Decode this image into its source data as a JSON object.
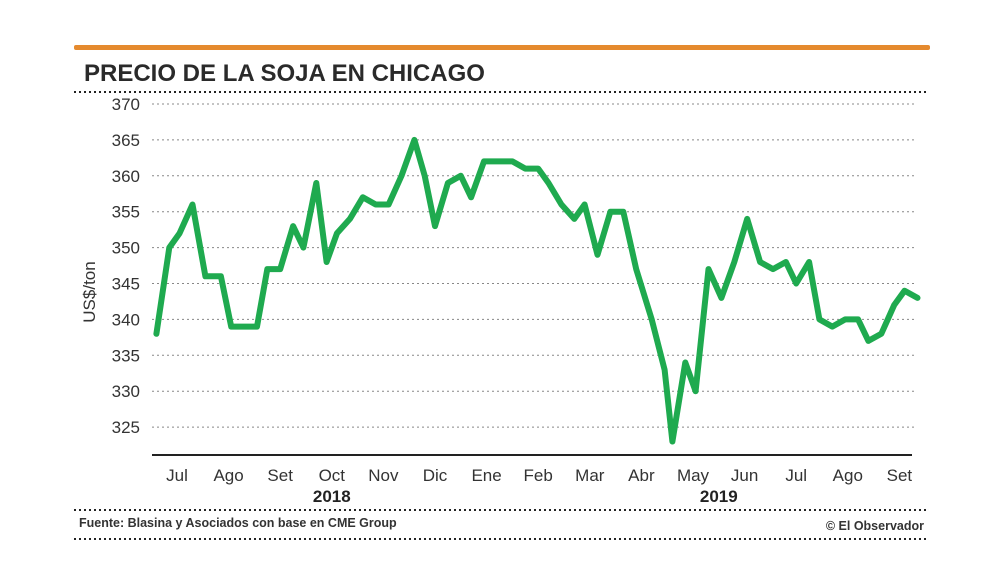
{
  "chart_data": {
    "type": "line",
    "title": "PRECIO DE LA SOJA EN CHICAGO",
    "ylabel": "US$/ton",
    "xlabel": "",
    "ylim": [
      320,
      370
    ],
    "yticks": [
      325,
      330,
      335,
      340,
      345,
      350,
      355,
      360,
      365,
      370
    ],
    "grid": true,
    "months": [
      "Jul",
      "Ago",
      "Set",
      "Oct",
      "Nov",
      "Dic",
      "Ene",
      "Feb",
      "Mar",
      "Abr",
      "May",
      "Jun",
      "Jul",
      "Ago",
      "Set"
    ],
    "years": [
      {
        "label": "2018",
        "under_month_index": 3
      },
      {
        "label": "2019",
        "under_month_index": 10.5
      }
    ],
    "series": [
      {
        "name": "Precio de la soja",
        "color": "#1faa4f",
        "points": [
          [
            -0.4,
            338
          ],
          [
            -0.15,
            350
          ],
          [
            0.05,
            352
          ],
          [
            0.3,
            356
          ],
          [
            0.55,
            346
          ],
          [
            0.85,
            346
          ],
          [
            1.05,
            339
          ],
          [
            1.35,
            339
          ],
          [
            1.55,
            339
          ],
          [
            1.75,
            347
          ],
          [
            2.0,
            347
          ],
          [
            2.25,
            353
          ],
          [
            2.45,
            350
          ],
          [
            2.7,
            359
          ],
          [
            2.9,
            348
          ],
          [
            3.1,
            352
          ],
          [
            3.35,
            354
          ],
          [
            3.6,
            357
          ],
          [
            3.85,
            356
          ],
          [
            4.1,
            356
          ],
          [
            4.35,
            360
          ],
          [
            4.6,
            365
          ],
          [
            4.8,
            360
          ],
          [
            5.0,
            353
          ],
          [
            5.25,
            359
          ],
          [
            5.5,
            360
          ],
          [
            5.7,
            357
          ],
          [
            5.95,
            362
          ],
          [
            6.2,
            362
          ],
          [
            6.5,
            362
          ],
          [
            6.75,
            361
          ],
          [
            7.0,
            361
          ],
          [
            7.2,
            359
          ],
          [
            7.45,
            356
          ],
          [
            7.7,
            354
          ],
          [
            7.9,
            356
          ],
          [
            8.15,
            349
          ],
          [
            8.4,
            355
          ],
          [
            8.65,
            355
          ],
          [
            8.9,
            347
          ],
          [
            9.2,
            340
          ],
          [
            9.45,
            333
          ],
          [
            9.6,
            323
          ],
          [
            9.85,
            334
          ],
          [
            10.05,
            330
          ],
          [
            10.3,
            347
          ],
          [
            10.55,
            343
          ],
          [
            10.8,
            348
          ],
          [
            11.05,
            354
          ],
          [
            11.3,
            348
          ],
          [
            11.55,
            347
          ],
          [
            11.8,
            348
          ],
          [
            12.0,
            345
          ],
          [
            12.25,
            348
          ],
          [
            12.45,
            340
          ],
          [
            12.7,
            339
          ],
          [
            12.95,
            340
          ],
          [
            13.2,
            340
          ],
          [
            13.4,
            337
          ],
          [
            13.65,
            338
          ],
          [
            13.9,
            342
          ],
          [
            14.1,
            344
          ],
          [
            14.35,
            343
          ]
        ]
      }
    ]
  },
  "source_text": "Fuente: Blasina y Asociados con base en CME Group",
  "credit_text": "© El Observador",
  "colors": {
    "accent": "#e58a2e",
    "line": "#1faa4f",
    "grid": "#888888",
    "axis": "#222222"
  }
}
